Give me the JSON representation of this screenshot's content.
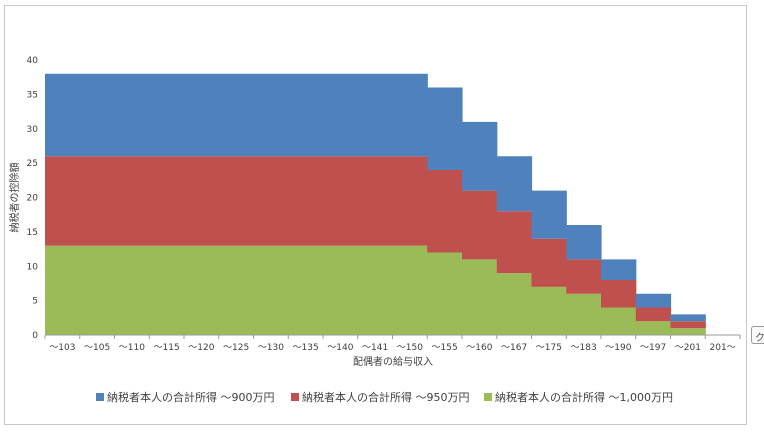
{
  "chart_data": {
    "type": "area",
    "stacked": true,
    "step": true,
    "title": "",
    "xlabel": "配偶者の給与収入",
    "ylabel": "納税者の控除額",
    "ylim": [
      0,
      40
    ],
    "yticks": [
      0,
      5,
      10,
      15,
      20,
      25,
      30,
      35,
      40
    ],
    "categories": [
      "～103",
      "～105",
      "～110",
      "～115",
      "～120",
      "～125",
      "～130",
      "～135",
      "～140",
      "～141",
      "～150",
      "～155",
      "～160",
      "～167",
      "～175",
      "～183",
      "～190",
      "～197",
      "～201",
      "201～"
    ],
    "series": [
      {
        "name": "納税者本人の合計所得 ～1,000万円",
        "color": "#9bbb59",
        "values": [
          13,
          13,
          13,
          13,
          13,
          13,
          13,
          13,
          13,
          13,
          13,
          12,
          11,
          9,
          7,
          6,
          4,
          2,
          1,
          0
        ]
      },
      {
        "name": "納税者本人の合計所得 ～950万円",
        "color": "#c0504d",
        "values": [
          13,
          13,
          13,
          13,
          13,
          13,
          13,
          13,
          13,
          13,
          13,
          12,
          10,
          9,
          7,
          5,
          4,
          2,
          1,
          0
        ]
      },
      {
        "name": "納税者本人の合計所得 ～900万円",
        "color": "#4f81bd",
        "values": [
          12,
          12,
          12,
          12,
          12,
          12,
          12,
          12,
          12,
          12,
          12,
          12,
          10,
          8,
          7,
          5,
          3,
          2,
          1,
          0
        ]
      }
    ],
    "legend_order": [
      2,
      1,
      0
    ],
    "grid": false,
    "legend_position": "bottom"
  },
  "handle": {
    "glyph": "ク"
  }
}
